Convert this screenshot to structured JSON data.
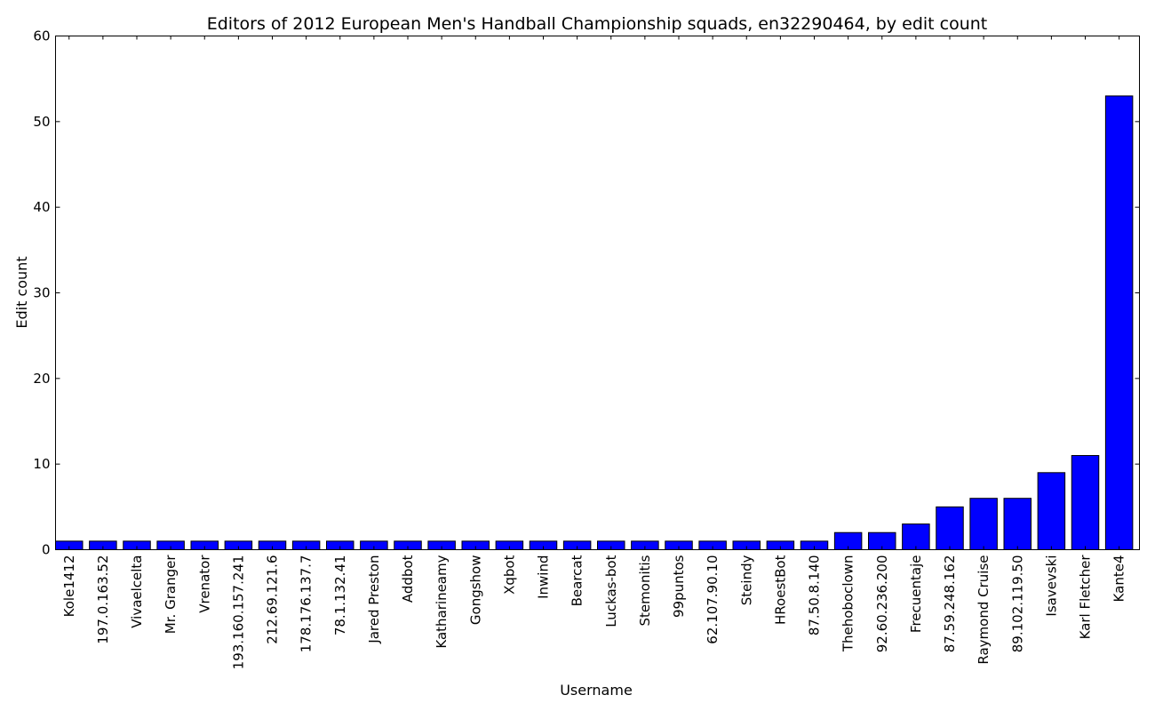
{
  "chart_data": {
    "type": "bar",
    "title": "Editors of 2012 European Men's Handball Championship squads, en32290464, by edit count",
    "xlabel": "Username",
    "ylabel": "Edit count",
    "ylim": [
      0,
      60
    ],
    "yticks": [
      0,
      10,
      20,
      30,
      40,
      50,
      60
    ],
    "grid": false,
    "bar_color": "#0000ff",
    "categories": [
      "Kole1412",
      "197.0.163.52",
      "Vivaelcelta",
      "Mr. Granger",
      "Vrenator",
      "193.160.157.241",
      "212.69.121.6",
      "178.176.137.7",
      "78.1.132.41",
      "Jared Preston",
      "Addbot",
      "Katharineamy",
      "Gongshow",
      "Xqbot",
      "Inwind",
      "Bearcat",
      "Luckas-bot",
      "Stemonitis",
      "99puntos",
      "62.107.90.10",
      "Steindy",
      "HRoestBot",
      "87.50.8.140",
      "Thehoboclown",
      "92.60.236.200",
      "Frecuentaje",
      "87.59.248.162",
      "Raymond Cruise",
      "89.102.119.50",
      "Isavevski",
      "Karl Fletcher",
      "Kante4"
    ],
    "values": [
      1,
      1,
      1,
      1,
      1,
      1,
      1,
      1,
      1,
      1,
      1,
      1,
      1,
      1,
      1,
      1,
      1,
      1,
      1,
      1,
      1,
      1,
      1,
      2,
      2,
      3,
      5,
      6,
      6,
      9,
      11,
      53
    ]
  }
}
